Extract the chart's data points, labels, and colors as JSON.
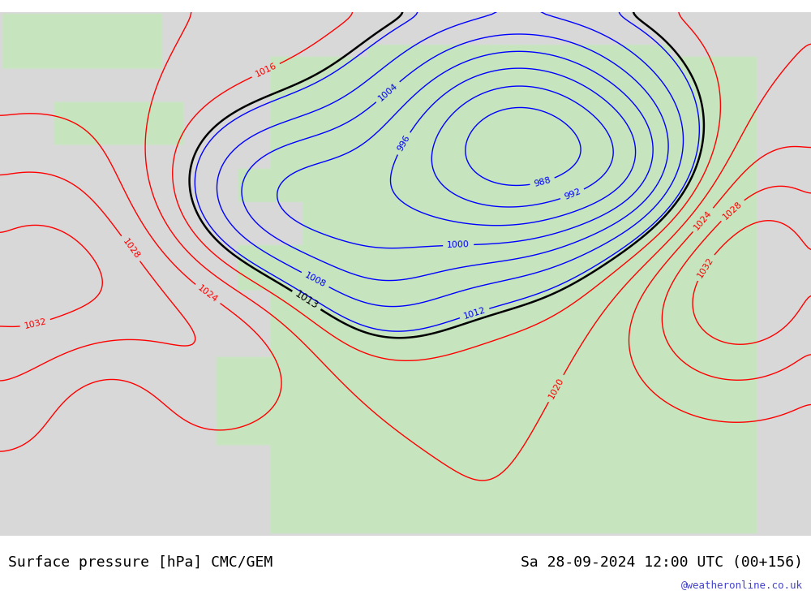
{
  "title_left": "Surface pressure [hPa] CMC/GEM",
  "title_right": "Sa 28-09-2024 12:00 UTC (00+156)",
  "watermark": "@weatheronline.co.uk",
  "bg_color": "#d8d8d8",
  "land_color": "#c8e6c0",
  "figsize": [
    10.0,
    7.33
  ],
  "dpi": 100,
  "bottom_bar_color": "#e8e8e8",
  "title_fontsize": 13,
  "watermark_color": "#4444cc"
}
